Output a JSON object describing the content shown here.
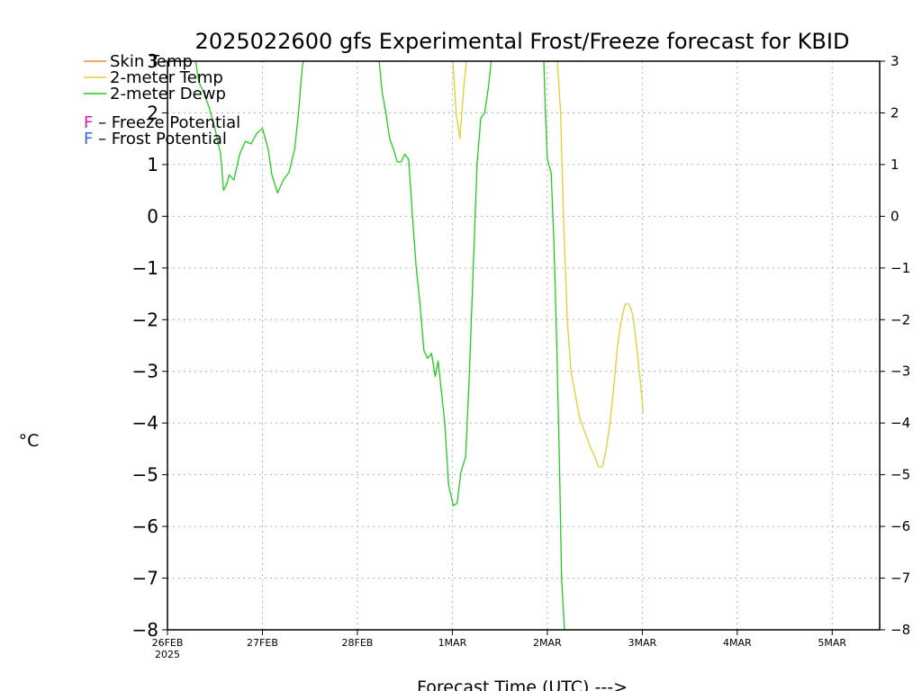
{
  "chart_data": {
    "type": "line",
    "title": "2025022600 gfs Experimental Frost/Freeze forecast for KBID",
    "xlabel": "Forecast Time (UTC) --->",
    "ylabel": "°C",
    "ylim": [
      -8,
      3
    ],
    "y_ticks": [
      -8,
      -7,
      -6,
      -5,
      -4,
      -3,
      -2,
      -1,
      0,
      1,
      2,
      3
    ],
    "x_unit": "days since 26FEB 00Z",
    "xlim": [
      0,
      7.5
    ],
    "x_ticks": [
      {
        "x": 0,
        "label": "26FEB",
        "sublabel": "2025"
      },
      {
        "x": 1,
        "label": "27FEB"
      },
      {
        "x": 2,
        "label": "28FEB"
      },
      {
        "x": 3,
        "label": "1MAR"
      },
      {
        "x": 4,
        "label": "2MAR"
      },
      {
        "x": 5,
        "label": "3MAR"
      },
      {
        "x": 6,
        "label": "4MAR"
      },
      {
        "x": 7,
        "label": "5MAR"
      }
    ],
    "grid": true,
    "legend": [
      {
        "name": "Skin Temp",
        "color": "#f08a30",
        "kind": "line"
      },
      {
        "name": "2-meter Temp",
        "color": "#e0d030",
        "kind": "line"
      },
      {
        "name": "2-meter Dewp",
        "color": "#22cc22",
        "kind": "line"
      },
      {
        "marker": "F",
        "name": " – Freeze Potential",
        "color": "#d020b0",
        "kind": "text"
      },
      {
        "marker": "F",
        "name": " – Frost Potential",
        "color": "#4060f0",
        "kind": "text"
      }
    ],
    "series": [
      {
        "name": "2-meter Temp",
        "color": "#e0d030",
        "segments": [
          [
            [
              3.0,
              3.2
            ],
            [
              3.04,
              2.0
            ],
            [
              3.08,
              1.5
            ],
            [
              3.12,
              2.5
            ],
            [
              3.16,
              3.2
            ]
          ],
          [
            [
              4.1,
              3.2
            ],
            [
              4.14,
              2.0
            ],
            [
              4.17,
              0.0
            ],
            [
              4.19,
              -1.0
            ],
            [
              4.21,
              -2.0
            ],
            [
              4.25,
              -3.0
            ],
            [
              4.3,
              -3.5
            ],
            [
              4.34,
              -3.9
            ],
            [
              4.38,
              -4.1
            ],
            [
              4.42,
              -4.3
            ],
            [
              4.46,
              -4.5
            ],
            [
              4.5,
              -4.65
            ],
            [
              4.54,
              -4.85
            ],
            [
              4.58,
              -4.85
            ],
            [
              4.62,
              -4.5
            ],
            [
              4.66,
              -4.0
            ],
            [
              4.7,
              -3.3
            ],
            [
              4.74,
              -2.5
            ],
            [
              4.78,
              -2.0
            ],
            [
              4.82,
              -1.7
            ],
            [
              4.86,
              -1.7
            ],
            [
              4.9,
              -1.9
            ],
            [
              4.94,
              -2.5
            ],
            [
              4.98,
              -3.2
            ],
            [
              5.01,
              -3.8
            ]
          ]
        ]
      },
      {
        "name": "2-meter Dewp",
        "color": "#22cc22",
        "segments": [
          [
            [
              0.28,
              3.2
            ],
            [
              0.33,
              2.6
            ],
            [
              0.38,
              2.4
            ],
            [
              0.44,
              2.1
            ],
            [
              0.5,
              1.7
            ],
            [
              0.56,
              1.2
            ],
            [
              0.59,
              0.5
            ],
            [
              0.62,
              0.6
            ],
            [
              0.65,
              0.8
            ],
            [
              0.7,
              0.7
            ],
            [
              0.76,
              1.2
            ],
            [
              0.82,
              1.45
            ],
            [
              0.88,
              1.4
            ],
            [
              0.94,
              1.6
            ],
            [
              1.0,
              1.7
            ],
            [
              1.06,
              1.3
            ],
            [
              1.1,
              0.8
            ],
            [
              1.16,
              0.45
            ],
            [
              1.22,
              0.7
            ],
            [
              1.28,
              0.85
            ],
            [
              1.34,
              1.3
            ],
            [
              1.38,
              2.0
            ],
            [
              1.42,
              2.9
            ],
            [
              1.45,
              3.2
            ]
          ],
          [
            [
              2.22,
              3.2
            ],
            [
              2.26,
              2.4
            ],
            [
              2.3,
              2.0
            ],
            [
              2.34,
              1.5
            ],
            [
              2.38,
              1.3
            ],
            [
              2.42,
              1.05
            ],
            [
              2.46,
              1.05
            ],
            [
              2.5,
              1.2
            ],
            [
              2.54,
              1.1
            ],
            [
              2.58,
              0.0
            ],
            [
              2.62,
              -1.0
            ],
            [
              2.66,
              -1.7
            ],
            [
              2.7,
              -2.6
            ],
            [
              2.74,
              -2.75
            ],
            [
              2.78,
              -2.65
            ],
            [
              2.82,
              -3.1
            ],
            [
              2.85,
              -2.8
            ],
            [
              2.88,
              -3.3
            ],
            [
              2.92,
              -4.0
            ],
            [
              2.96,
              -5.2
            ],
            [
              3.01,
              -5.6
            ],
            [
              3.05,
              -5.55
            ],
            [
              3.09,
              -4.95
            ],
            [
              3.14,
              -4.65
            ],
            [
              3.18,
              -3.0
            ],
            [
              3.22,
              -1.0
            ],
            [
              3.26,
              1.0
            ],
            [
              3.3,
              1.9
            ],
            [
              3.34,
              2.0
            ],
            [
              3.38,
              2.5
            ],
            [
              3.42,
              3.2
            ]
          ],
          [
            [
              3.96,
              3.2
            ],
            [
              3.98,
              2.0
            ],
            [
              4.0,
              1.1
            ],
            [
              4.04,
              0.85
            ],
            [
              4.07,
              -0.5
            ],
            [
              4.1,
              -2.5
            ],
            [
              4.13,
              -5.0
            ],
            [
              4.15,
              -7.0
            ],
            [
              4.18,
              -8.0
            ]
          ]
        ]
      }
    ]
  }
}
